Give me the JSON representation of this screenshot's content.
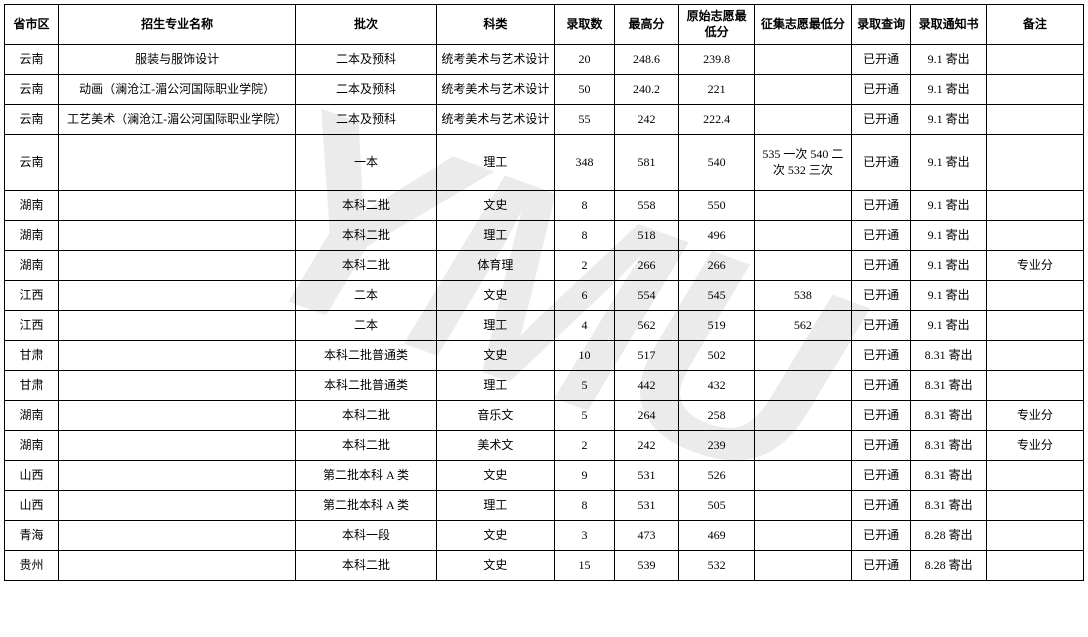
{
  "watermark": "YMU",
  "headers": {
    "province": "省市区",
    "major": "招生专业名称",
    "batch": "批次",
    "category": "科类",
    "enroll_count": "录取数",
    "high_score": "最高分",
    "orig_min": "原始志愿最低分",
    "collect_min": "征集志愿最低分",
    "query": "录取查询",
    "notice": "录取通知书",
    "remark": "备注"
  },
  "rows": [
    {
      "province": "云南",
      "major": "服装与服饰设计",
      "batch": "二本及预科",
      "category": "统考美术与艺术设计",
      "enroll": "20",
      "high": "248.6",
      "origmin": "239.8",
      "collectmin": "",
      "query": "已开通",
      "notice": "9.1 寄出",
      "remark": "",
      "tall": false
    },
    {
      "province": "云南",
      "major": "动画（澜沧江-湄公河国际职业学院）",
      "batch": "二本及预科",
      "category": "统考美术与艺术设计",
      "enroll": "50",
      "high": "240.2",
      "origmin": "221",
      "collectmin": "",
      "query": "已开通",
      "notice": "9.1 寄出",
      "remark": "",
      "tall": false
    },
    {
      "province": "云南",
      "major": "工艺美术（澜沧江-湄公河国际职业学院）",
      "batch": "二本及预科",
      "category": "统考美术与艺术设计",
      "enroll": "55",
      "high": "242",
      "origmin": "222.4",
      "collectmin": "",
      "query": "已开通",
      "notice": "9.1 寄出",
      "remark": "",
      "tall": false
    },
    {
      "province": "云南",
      "major": "",
      "batch": "一本",
      "category": "理工",
      "enroll": "348",
      "high": "581",
      "origmin": "540",
      "collectmin": "535 一次 540 二次 532 三次",
      "query": "已开通",
      "notice": "9.1 寄出",
      "remark": "",
      "tall": true
    },
    {
      "province": "湖南",
      "major": "",
      "batch": "本科二批",
      "category": "文史",
      "enroll": "8",
      "high": "558",
      "origmin": "550",
      "collectmin": "",
      "query": "已开通",
      "notice": "9.1 寄出",
      "remark": "",
      "tall": false
    },
    {
      "province": "湖南",
      "major": "",
      "batch": "本科二批",
      "category": "理工",
      "enroll": "8",
      "high": "518",
      "origmin": "496",
      "collectmin": "",
      "query": "已开通",
      "notice": "9.1 寄出",
      "remark": "",
      "tall": false
    },
    {
      "province": "湖南",
      "major": "",
      "batch": "本科二批",
      "category": "体育理",
      "enroll": "2",
      "high": "266",
      "origmin": "266",
      "collectmin": "",
      "query": "已开通",
      "notice": "9.1 寄出",
      "remark": "专业分",
      "tall": false
    },
    {
      "province": "江西",
      "major": "",
      "batch": "二本",
      "category": "文史",
      "enroll": "6",
      "high": "554",
      "origmin": "545",
      "collectmin": "538",
      "query": "已开通",
      "notice": "9.1 寄出",
      "remark": "",
      "tall": false
    },
    {
      "province": "江西",
      "major": "",
      "batch": "二本",
      "category": "理工",
      "enroll": "4",
      "high": "562",
      "origmin": "519",
      "collectmin": "562",
      "query": "已开通",
      "notice": "9.1 寄出",
      "remark": "",
      "tall": false
    },
    {
      "province": "甘肃",
      "major": "",
      "batch": "本科二批普通类",
      "category": "文史",
      "enroll": "10",
      "high": "517",
      "origmin": "502",
      "collectmin": "",
      "query": "已开通",
      "notice": "8.31 寄出",
      "remark": "",
      "tall": false
    },
    {
      "province": "甘肃",
      "major": "",
      "batch": "本科二批普通类",
      "category": "理工",
      "enroll": "5",
      "high": "442",
      "origmin": "432",
      "collectmin": "",
      "query": "已开通",
      "notice": "8.31 寄出",
      "remark": "",
      "tall": false
    },
    {
      "province": "湖南",
      "major": "",
      "batch": "本科二批",
      "category": "音乐文",
      "enroll": "5",
      "high": "264",
      "origmin": "258",
      "collectmin": "",
      "query": "已开通",
      "notice": "8.31 寄出",
      "remark": "专业分",
      "tall": false
    },
    {
      "province": "湖南",
      "major": "",
      "batch": "本科二批",
      "category": "美术文",
      "enroll": "2",
      "high": "242",
      "origmin": "239",
      "collectmin": "",
      "query": "已开通",
      "notice": "8.31 寄出",
      "remark": "专业分",
      "tall": false
    },
    {
      "province": "山西",
      "major": "",
      "batch": "第二批本科 A 类",
      "category": "文史",
      "enroll": "9",
      "high": "531",
      "origmin": "526",
      "collectmin": "",
      "query": "已开通",
      "notice": "8.31 寄出",
      "remark": "",
      "tall": false
    },
    {
      "province": "山西",
      "major": "",
      "batch": "第二批本科 A 类",
      "category": "理工",
      "enroll": "8",
      "high": "531",
      "origmin": "505",
      "collectmin": "",
      "query": "已开通",
      "notice": "8.31 寄出",
      "remark": "",
      "tall": false
    },
    {
      "province": "青海",
      "major": "",
      "batch": "本科一段",
      "category": "文史",
      "enroll": "3",
      "high": "473",
      "origmin": "469",
      "collectmin": "",
      "query": "已开通",
      "notice": "8.28 寄出",
      "remark": "",
      "tall": false
    },
    {
      "province": "贵州",
      "major": "",
      "batch": "本科二批",
      "category": "文史",
      "enroll": "15",
      "high": "539",
      "origmin": "532",
      "collectmin": "",
      "query": "已开通",
      "notice": "8.28 寄出",
      "remark": "",
      "tall": false
    }
  ]
}
